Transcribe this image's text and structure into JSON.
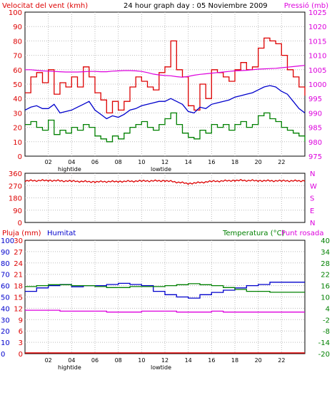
{
  "colors": {
    "wind": "#dd0000",
    "gust": "#dd0000",
    "avg_wind": "#008000",
    "humidity": "#0000cc",
    "temperature": "#008000",
    "pressure": "#dd00dd",
    "dewpoint": "#dd00dd",
    "rain": "#dd0000",
    "wind_dir": "#dd0000",
    "grid": "#bbbbbb",
    "axis": "#000000"
  },
  "chart_data": [
    {
      "type": "line",
      "title": "24 hour graph day : 05 Noviembre 2009",
      "left_label": "Velocitat del vent (kmh)",
      "right_label": "Pressió (mb)",
      "y_left_ticks": [
        "100",
        "90",
        "80",
        "70",
        "60",
        "50",
        "40",
        "30",
        "20",
        "10",
        "0"
      ],
      "y_right_ticks": [
        "1025",
        "1020",
        "1015",
        "1010",
        "1005",
        "1000",
        "995",
        "990",
        "985",
        "980",
        "975"
      ],
      "ylim_left": [
        0,
        100
      ],
      "ylim_right": [
        975,
        1025
      ],
      "x_ticks": [
        "02",
        "04",
        "06",
        "08",
        "10",
        "12",
        "14",
        "16",
        "18",
        "20",
        "22"
      ],
      "x_annotations": [
        "hightide",
        "lowtide"
      ],
      "grid": true,
      "x_hours": [
        0,
        0.5,
        1,
        1.5,
        2,
        2.5,
        3,
        3.5,
        4,
        4.5,
        5,
        5.5,
        6,
        6.5,
        7,
        7.5,
        8,
        8.5,
        9,
        9.5,
        10,
        10.5,
        11,
        11.5,
        12,
        12.5,
        13,
        13.5,
        14,
        14.5,
        15,
        15.5,
        16,
        16.5,
        17,
        17.5,
        18,
        18.5,
        19,
        19.5,
        20,
        20.5,
        21,
        21.5,
        22,
        22.5,
        23,
        23.5,
        24
      ],
      "series": [
        {
          "values": [
            44,
            55,
            58,
            51,
            60,
            43,
            51,
            48,
            55,
            48,
            62,
            55,
            44,
            39,
            30,
            38,
            32,
            38,
            48,
            55,
            52,
            48,
            46,
            58,
            62,
            80,
            60,
            55,
            35,
            32,
            50,
            40,
            60,
            58,
            55,
            52,
            60,
            65,
            60,
            62,
            75,
            82,
            80,
            78,
            70,
            60,
            55,
            48,
            42
          ]
        },
        {
          "values": [
            32,
            34,
            35,
            33,
            33,
            36,
            30,
            31,
            32,
            34,
            36,
            38,
            32,
            29,
            26,
            28,
            27,
            29,
            32,
            33,
            35,
            36,
            37,
            38,
            38,
            40,
            38,
            36,
            31,
            30,
            34,
            33,
            36,
            37,
            38,
            39,
            41,
            42,
            43,
            44,
            46,
            48,
            49,
            48,
            45,
            43,
            38,
            33,
            30
          ]
        },
        {
          "values": [
            22,
            24,
            20,
            18,
            25,
            15,
            18,
            16,
            20,
            18,
            22,
            20,
            14,
            12,
            10,
            14,
            12,
            16,
            20,
            22,
            24,
            20,
            18,
            22,
            26,
            30,
            22,
            16,
            13,
            12,
            18,
            16,
            22,
            20,
            22,
            18,
            22,
            24,
            20,
            22,
            28,
            30,
            26,
            24,
            20,
            18,
            16,
            14,
            10
          ]
        },
        {
          "values": [
            1005.0,
            1005.0,
            1004.8,
            1004.6,
            1004.5,
            1004.4,
            1004.3,
            1004.2,
            1004.2,
            1004.2,
            1004.3,
            1004.4,
            1004.4,
            1004.3,
            1004.3,
            1004.5,
            1004.6,
            1004.7,
            1004.7,
            1004.6,
            1004.4,
            1004.0,
            1003.5,
            1003.2,
            1003.0,
            1002.9,
            1002.6,
            1002.4,
            1002.7,
            1003.1,
            1003.4,
            1003.6,
            1003.8,
            1004.0,
            1004.2,
            1004.4,
            1004.6,
            1004.7,
            1004.8,
            1005.0,
            1005.2,
            1005.3,
            1005.4,
            1005.5,
            1005.7,
            1005.9,
            1006.1,
            1006.3,
            1006.5
          ]
        }
      ]
    },
    {
      "type": "line",
      "y_ticks": [
        "360",
        "270",
        "180",
        "90",
        "0"
      ],
      "ylim": [
        0,
        360
      ],
      "direction_labels": [
        "N",
        "W",
        "S",
        "E",
        "N"
      ],
      "x_hours": [
        0,
        2,
        4,
        6,
        8,
        10,
        12,
        14,
        16,
        18,
        20,
        22,
        24
      ],
      "series": [
        {
          "values": [
            305,
            308,
            302,
            298,
            300,
            303,
            306,
            285,
            300,
            308,
            306,
            304,
            305
          ]
        }
      ]
    },
    {
      "type": "line",
      "left_label_rain": "Pluja (mm)",
      "left_label_humidity": "Humitat",
      "right_label_temp": "Temperatura (°C)",
      "right_label_dew": "Punt rosada",
      "y_ticks_humidity": [
        "100",
        "90",
        "80",
        "70",
        "60",
        "50",
        "40",
        "30",
        "20",
        "10",
        "0"
      ],
      "y_ticks_rain": [
        "30",
        "27",
        "24",
        "21",
        "18",
        "15",
        "12",
        "9",
        "6",
        "3",
        "0"
      ],
      "y_ticks_temp": [
        "40",
        "34",
        "28",
        "22",
        "16",
        "10",
        "4",
        "-2",
        "-8",
        "-14",
        "-20"
      ],
      "ylim_humidity": [
        0,
        100
      ],
      "ylim_rain": [
        0,
        30
      ],
      "ylim_temp": [
        -20,
        40
      ],
      "x_ticks": [
        "02",
        "04",
        "06",
        "08",
        "10",
        "12",
        "14",
        "16",
        "18",
        "20",
        "22"
      ],
      "x_annotations": [
        "hightide",
        "lowtide"
      ],
      "grid": true,
      "x_hours": [
        0,
        1,
        2,
        3,
        4,
        5,
        6,
        7,
        8,
        9,
        10,
        11,
        12,
        13,
        14,
        15,
        16,
        17,
        18,
        19,
        20,
        21,
        22,
        23,
        24
      ],
      "series": [
        {
          "values": [
            55,
            58,
            60,
            61,
            59,
            60,
            60,
            61,
            62,
            61,
            60,
            55,
            52,
            50,
            49,
            52,
            54,
            56,
            58,
            60,
            61,
            63,
            63,
            63,
            63
          ]
        },
        {
          "values": [
            15.5,
            16,
            16.5,
            16.5,
            16,
            16,
            15.5,
            15,
            15,
            15.5,
            15.5,
            15.5,
            16,
            16.5,
            17,
            16.5,
            16,
            15,
            14,
            13,
            13,
            12.5,
            12.5,
            12.5,
            12.5
          ]
        },
        {
          "values": [
            3,
            3,
            3,
            2.5,
            2.5,
            2.5,
            2.5,
            2,
            2,
            2,
            2.5,
            2.5,
            2.5,
            2,
            2,
            2,
            2.5,
            2,
            2,
            2,
            2,
            2,
            2,
            2,
            2
          ]
        },
        {
          "values": [
            0,
            0,
            0,
            0,
            0,
            0,
            0,
            0,
            0,
            0,
            0,
            0,
            0,
            0,
            0,
            0,
            0,
            0,
            0,
            0,
            0,
            0,
            0,
            0,
            0
          ]
        }
      ]
    }
  ]
}
